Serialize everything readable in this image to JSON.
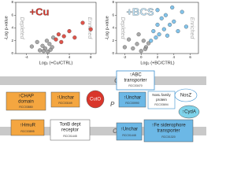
{
  "chart_data": [
    {
      "type": "scatter",
      "title": "+Cu",
      "x_label": "Log₂ (+Cu/CTRL)",
      "y_label": "-Log p-value",
      "annotations": [
        "Depleted",
        "Enriched"
      ],
      "xlim": [
        -6,
        9
      ],
      "xticks": [
        -4,
        0,
        4,
        8
      ],
      "ylim": [
        0,
        8
      ],
      "yticks": [
        0,
        2,
        4,
        6,
        8
      ],
      "series": [
        {
          "color": "#9a9a9a",
          "x": [
            -1.5,
            -1,
            -0.5,
            -0.2,
            0,
            0.3,
            0.5,
            0.8,
            -0.8,
            1,
            -2,
            -3
          ],
          "values": [
            0.5,
            1.2,
            0.8,
            2,
            0.3,
            1.5,
            0.6,
            1,
            0.4,
            2.5,
            1.8,
            1.1
          ]
        },
        {
          "color": "#d9362b",
          "x": [
            1.5,
            2,
            2.5,
            3,
            4,
            5,
            6.5,
            8
          ],
          "values": [
            2.2,
            3,
            1.8,
            2.7,
            3.5,
            2.5,
            4.8,
            3.8
          ]
        }
      ]
    },
    {
      "type": "scatter",
      "title": "+BCS",
      "x_label": "Log₂ (+BC/CTRL)",
      "y_label": "-Log p-value",
      "annotations": [
        "Depleted",
        "Enriched"
      ],
      "xlim": [
        -3,
        7
      ],
      "xticks": [
        -2,
        0,
        2,
        4,
        6
      ],
      "ylim": [
        0,
        8
      ],
      "yticks": [
        0,
        2,
        4,
        6,
        8
      ],
      "series": [
        {
          "color": "#9a9a9a",
          "x": [
            -2,
            -1.5,
            -1,
            -0.5,
            0,
            0.3,
            0.6,
            0.9,
            -0.3,
            0.5
          ],
          "values": [
            1,
            2.2,
            0.8,
            1.5,
            0.4,
            2,
            1,
            1.6,
            3,
            0.7
          ]
        },
        {
          "color": "#6cb8e6",
          "x": [
            1.2,
            1.5,
            1.8,
            2,
            2.2,
            2.5,
            2.8,
            3,
            3.2,
            3.5,
            4,
            4.5,
            5,
            5.5,
            2,
            3.8
          ],
          "values": [
            2,
            3.5,
            2.5,
            4.5,
            3,
            5.5,
            3.8,
            6,
            2.8,
            4.5,
            5,
            3.5,
            6.5,
            4.2,
            6.8,
            7.2
          ]
        }
      ]
    }
  ],
  "diagram": {
    "layers": [
      "CM",
      "P",
      "OM"
    ],
    "nodes": [
      {
        "lines": [
          "↑CHAP",
          "domain"
        ],
        "id": "RCC03880"
      },
      {
        "lines": [
          "↑Unchar"
        ],
        "id": "RCC03169"
      },
      {
        "lines": [
          "CutO"
        ]
      },
      {
        "lines": [
          "↑ABC",
          "transporter"
        ],
        "id": "RCC03470"
      },
      {
        "lines": [
          "↑Unchar"
        ],
        "id": "RCC00990"
      },
      {
        "lines": [
          "NosL family",
          "protein"
        ],
        "id": "RCC03694"
      },
      {
        "lines": [
          "NosZ"
        ]
      },
      {
        "lines": [
          "↑CydA"
        ]
      },
      {
        "lines": [
          "↑HmuR"
        ],
        "id": "RCC03895"
      },
      {
        "lines": [
          "TonB dept",
          "receptor"
        ],
        "id": "RCC01445"
      },
      {
        "lines": [
          "↑Unchar"
        ],
        "id": "RCC01448"
      },
      {
        "lines": [
          "↑Fe siderophore",
          "transporter"
        ],
        "id": "RCC01320"
      }
    ]
  }
}
